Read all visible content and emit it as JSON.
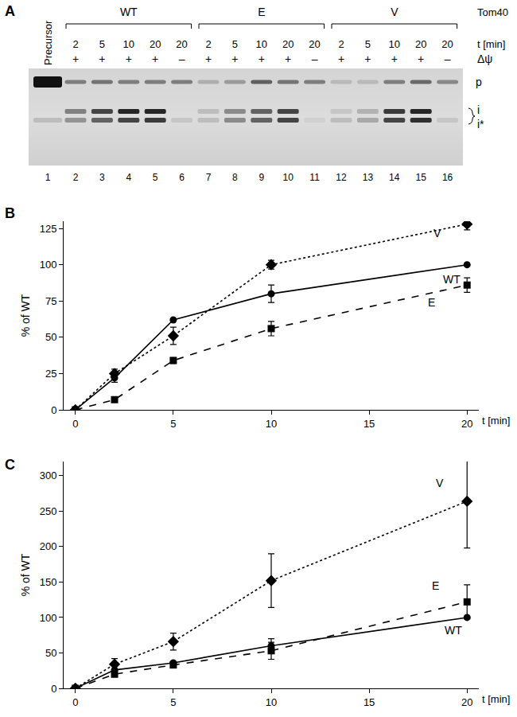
{
  "gel": {
    "panel": "A",
    "precursor_label": "Precursor",
    "header_label": "Tom40",
    "time_label": "t [min]",
    "potential_label": "Δψ",
    "groups": [
      {
        "label": "WT",
        "first_lane": 2,
        "last_lane": 6
      },
      {
        "label": "E",
        "first_lane": 7,
        "last_lane": 11
      },
      {
        "label": "V",
        "first_lane": 12,
        "last_lane": 16
      }
    ],
    "band_labels": [
      "p",
      "i",
      "i*"
    ],
    "lanes": [
      {
        "number": 1,
        "t": null,
        "dpsi": null,
        "p": 1.0,
        "i": 0.0,
        "i_star": 0.15
      },
      {
        "number": 2,
        "t": 2,
        "dpsi": "+",
        "p": 0.45,
        "i": 0.45,
        "i_star": 0.35
      },
      {
        "number": 3,
        "t": 5,
        "dpsi": "+",
        "p": 0.5,
        "i": 0.75,
        "i_star": 0.6
      },
      {
        "number": 4,
        "t": 10,
        "dpsi": "+",
        "p": 0.45,
        "i": 0.9,
        "i_star": 0.75
      },
      {
        "number": 5,
        "t": 20,
        "dpsi": "+",
        "p": 0.45,
        "i": 0.9,
        "i_star": 0.8
      },
      {
        "number": 6,
        "t": 20,
        "dpsi": "–",
        "p": 0.45,
        "i": 0.0,
        "i_star": 0.1
      },
      {
        "number": 7,
        "t": 2,
        "dpsi": "+",
        "p": 0.2,
        "i": 0.15,
        "i_star": 0.15
      },
      {
        "number": 8,
        "t": 5,
        "dpsi": "+",
        "p": 0.3,
        "i": 0.4,
        "i_star": 0.4
      },
      {
        "number": 9,
        "t": 10,
        "dpsi": "+",
        "p": 0.6,
        "i": 0.6,
        "i_star": 0.6
      },
      {
        "number": 10,
        "t": 20,
        "dpsi": "+",
        "p": 0.5,
        "i": 0.75,
        "i_star": 0.75
      },
      {
        "number": 11,
        "t": 20,
        "dpsi": "–",
        "p": 0.45,
        "i": 0.0,
        "i_star": 0.05
      },
      {
        "number": 12,
        "t": 2,
        "dpsi": "+",
        "p": 0.15,
        "i": 0.1,
        "i_star": 0.15
      },
      {
        "number": 13,
        "t": 5,
        "dpsi": "+",
        "p": 0.15,
        "i": 0.2,
        "i_star": 0.25
      },
      {
        "number": 14,
        "t": 10,
        "dpsi": "+",
        "p": 0.45,
        "i": 0.8,
        "i_star": 0.75
      },
      {
        "number": 15,
        "t": 20,
        "dpsi": "+",
        "p": 0.55,
        "i": 0.9,
        "i_star": 0.85
      },
      {
        "number": 16,
        "t": 20,
        "dpsi": "–",
        "p": 0.4,
        "i": 0.0,
        "i_star": 0.1
      }
    ]
  },
  "chart_data": [
    {
      "panel": "B",
      "type": "line",
      "xlabel": "t [min]",
      "ylabel": "% of WT",
      "xlim": [
        -0.6,
        20.6
      ],
      "xticks": [
        0,
        5,
        10,
        15,
        20
      ],
      "ylim": [
        0,
        130
      ],
      "yticks": [
        0,
        25,
        50,
        75,
        100,
        125
      ],
      "x": [
        0,
        2,
        5,
        10,
        20
      ],
      "series": [
        {
          "name": "WT",
          "color": "#000000",
          "marker": "circle",
          "line_style": "solid",
          "values": [
            0,
            22,
            62,
            80,
            100
          ],
          "errors": [
            null,
            3,
            null,
            6,
            null
          ]
        },
        {
          "name": "E",
          "color": "#000000",
          "marker": "square",
          "line_style": "dash",
          "values": [
            0,
            7,
            34,
            56,
            86
          ],
          "errors": [
            null,
            null,
            2,
            5,
            5
          ]
        },
        {
          "name": "V",
          "color": "#000000",
          "marker": "diamond",
          "line_style": "dot",
          "values": [
            0,
            25,
            51,
            100,
            128
          ],
          "errors": [
            null,
            3,
            6,
            3,
            4
          ]
        }
      ],
      "annotations": [
        {
          "text": "V",
          "x": 18.5,
          "y": 122
        },
        {
          "text": "WT",
          "x": 19.2,
          "y": 90
        },
        {
          "text": "E",
          "x": 18.2,
          "y": 74
        }
      ]
    },
    {
      "panel": "C",
      "type": "line",
      "xlabel": "t [min]",
      "ylabel": "% of WT",
      "xlim": [
        -0.6,
        20.6
      ],
      "xticks": [
        0,
        5,
        10,
        15,
        20
      ],
      "ylim": [
        0,
        320
      ],
      "yticks": [
        0,
        50,
        100,
        150,
        200,
        250,
        300
      ],
      "x": [
        0,
        2,
        5,
        10,
        20
      ],
      "series": [
        {
          "name": "WT",
          "color": "#000000",
          "marker": "circle",
          "line_style": "solid",
          "values": [
            0,
            26,
            36,
            60,
            100
          ],
          "errors": [
            null,
            null,
            null,
            10,
            null
          ]
        },
        {
          "name": "E",
          "color": "#000000",
          "marker": "square",
          "line_style": "dash",
          "values": [
            0,
            20,
            33,
            53,
            122
          ],
          "errors": [
            null,
            4,
            4,
            12,
            24
          ]
        },
        {
          "name": "V",
          "color": "#000000",
          "marker": "diamond",
          "line_style": "dot",
          "values": [
            0,
            34,
            66,
            152,
            264
          ],
          "errors": [
            null,
            8,
            12,
            38,
            66
          ]
        }
      ],
      "annotations": [
        {
          "text": "V",
          "x": 18.6,
          "y": 290
        },
        {
          "text": "E",
          "x": 18.4,
          "y": 145
        },
        {
          "text": "WT",
          "x": 19.3,
          "y": 82
        }
      ]
    }
  ]
}
